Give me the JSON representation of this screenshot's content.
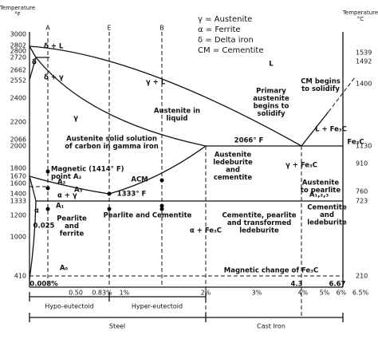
{
  "axes": {
    "left_title": [
      "Temperature",
      "°F"
    ],
    "right_title": [
      "Temperature",
      "°C"
    ],
    "left_ticks": [
      "3000",
      "2802",
      "2800",
      "2720",
      "2662",
      "2552",
      "2400",
      "2200",
      "2066",
      "2000",
      "1800",
      "1670",
      "1600",
      "1400",
      "1333",
      "1200",
      "1000",
      "410"
    ],
    "right_ticks": [
      "1539",
      "1492",
      "1400",
      "1130",
      "910",
      "760",
      "723",
      "210"
    ],
    "bottom_ticks": [
      "0.50",
      "0.83%",
      "1%",
      "2%",
      "3%",
      "4%",
      "5%",
      "6%",
      "6.5%"
    ]
  },
  "composition_lines": [
    "A",
    "E",
    "B"
  ],
  "legend": [
    "γ = Austenite",
    "α = Ferrite",
    "δ = Delta iron",
    "CM = Cementite"
  ],
  "regions": [
    {
      "lines": [
        "δ + L"
      ]
    },
    {
      "lines": [
        "δ"
      ]
    },
    {
      "lines": [
        "δ + γ"
      ]
    },
    {
      "lines": [
        "γ + L"
      ]
    },
    {
      "lines": [
        "L"
      ]
    },
    {
      "lines": [
        "γ"
      ]
    },
    {
      "lines": [
        "Austenite in",
        "liquid"
      ]
    },
    {
      "lines": [
        "Primary",
        "austenite",
        "begins to",
        "solidify"
      ]
    },
    {
      "lines": [
        "CM begins",
        "to solidify"
      ]
    },
    {
      "lines": [
        "L + Fe₃C"
      ]
    },
    {
      "lines": [
        "2066° F"
      ]
    },
    {
      "lines": [
        "Austenite solid solution",
        "of carbon in gamma iron"
      ]
    },
    {
      "lines": [
        "Magnetic (1414° F)",
        "point A₂"
      ]
    },
    {
      "lines": [
        "A₂"
      ]
    },
    {
      "lines": [
        "A₃"
      ]
    },
    {
      "lines": [
        "α + γ"
      ]
    },
    {
      "lines": [
        "A₁"
      ]
    },
    {
      "lines": [
        "ACM"
      ]
    },
    {
      "lines": [
        "1333° F"
      ]
    },
    {
      "lines": [
        "Austenite",
        "ledeburite",
        "and",
        "cementite"
      ]
    },
    {
      "lines": [
        "γ + Fe₃C"
      ]
    },
    {
      "lines": [
        "Fe₃C"
      ]
    },
    {
      "lines": [
        "Austenite",
        "to pearlite"
      ]
    },
    {
      "lines": [
        "A₁,₂,₃"
      ]
    },
    {
      "lines": [
        "Cementite",
        "and",
        "ledeburite"
      ]
    },
    {
      "lines": [
        "α"
      ]
    },
    {
      "lines": [
        "0.025"
      ]
    },
    {
      "lines": [
        "Pearlite",
        "and",
        "ferrite"
      ]
    },
    {
      "lines": [
        "Pearlite and Cementite"
      ]
    },
    {
      "lines": [
        "α + Fe₃C"
      ]
    },
    {
      "lines": [
        "Cementite, pearlite",
        "and transformed",
        "ledeburite"
      ]
    },
    {
      "lines": [
        "A₀"
      ]
    },
    {
      "lines": [
        "Magnetic change of Fe₃C"
      ]
    },
    {
      "lines": [
        "0.008%"
      ]
    },
    {
      "lines": [
        "4.3"
      ]
    },
    {
      "lines": [
        "6.67"
      ]
    }
  ],
  "ranges": {
    "hypo": "Hypo-eutectoid",
    "hyper": "Hyper-eutectoid",
    "steel": "Steel",
    "cast_iron": "Cast Iron"
  }
}
